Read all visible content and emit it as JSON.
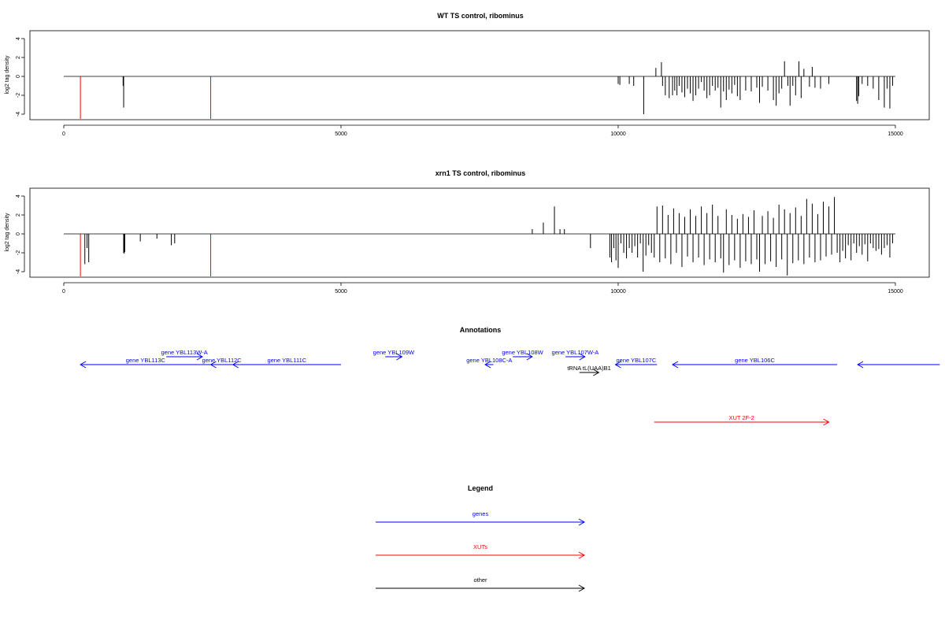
{
  "chart_data": [
    {
      "type": "bar",
      "title": "WT TS control, ribominus",
      "ylabel": "log2 tag density",
      "xlabel": "",
      "xlim": [
        0,
        15000
      ],
      "ylim": [
        -4.5,
        4.5
      ],
      "x_ticks": [
        0,
        5000,
        10000,
        15000
      ],
      "y_ticks": [
        -4,
        -2,
        0,
        2,
        4
      ],
      "grid": false,
      "series": [
        {
          "color": "#ff0000",
          "x": [
            300,
            2650
          ],
          "values": [
            -4.5,
            -4.5
          ]
        },
        {
          "color": "#000000",
          "x": [
            1070,
            1080,
            10000,
            10030,
            10200,
            10280,
            10460,
            10680,
            10780,
            10800,
            10850,
            10920,
            10980,
            11020,
            11060,
            11100,
            11150,
            11200,
            11250,
            11300,
            11350,
            11400,
            11450,
            11500,
            11550,
            11600,
            11650,
            11700,
            11750,
            11800,
            11850,
            11900,
            11950,
            12000,
            12050,
            12100,
            12150,
            12200,
            12300,
            12400,
            12500,
            12550,
            12600,
            12700,
            12800,
            12850,
            12900,
            12950,
            13000,
            13060,
            13100,
            13150,
            13200,
            13260,
            13300,
            13350,
            13450,
            13500,
            13550,
            13650,
            13800,
            14300,
            14320,
            14340,
            14400,
            14500,
            14600,
            14700,
            14800,
            14850,
            14900,
            14950
          ],
          "values": [
            -1.0,
            -3.3,
            -0.8,
            -0.9,
            -0.8,
            -1.0,
            -4.0,
            0.9,
            1.5,
            -1.0,
            -2.0,
            -2.3,
            -2.0,
            -1.5,
            -2.0,
            -1.0,
            -1.7,
            -2.2,
            -1.3,
            -1.8,
            -2.6,
            -2.0,
            -1.3,
            -0.6,
            -1.5,
            -2.3,
            -2.0,
            -1.0,
            -1.5,
            -1.2,
            -3.3,
            -1.6,
            -2.5,
            -1.4,
            -1.8,
            -0.9,
            -2.1,
            -2.5,
            -1.5,
            -1.6,
            -1.2,
            -2.8,
            -1.1,
            -1.5,
            -2.5,
            -3.1,
            -1.8,
            -1.3,
            1.6,
            -1.0,
            -3.1,
            -1.0,
            -2.0,
            1.6,
            -2.3,
            0.8,
            -1.1,
            1.0,
            -1.2,
            -1.3,
            -0.8,
            -2.6,
            -2.9,
            -2.1,
            -0.8,
            -1.0,
            -1.3,
            -2.5,
            -3.3,
            -1.3,
            -3.4,
            -1.0
          ]
        }
      ]
    },
    {
      "type": "bar",
      "title": "xrn1 TS control, ribominus",
      "ylabel": "log2 tag density",
      "xlabel": "",
      "xlim": [
        0,
        15000
      ],
      "ylim": [
        -4.5,
        4.5
      ],
      "x_ticks": [
        0,
        5000,
        10000,
        15000
      ],
      "y_ticks": [
        -4,
        -2,
        0,
        2,
        4
      ],
      "grid": false,
      "series": [
        {
          "color": "#ff0000",
          "x": [
            300,
            2650
          ],
          "values": [
            -4.5,
            -4.5
          ]
        },
        {
          "color": "#000000",
          "x": [
            380,
            420,
            450,
            1080,
            1090,
            1100,
            1380,
            1680,
            1940,
            2000,
            8450,
            8650,
            8850,
            8950,
            9030,
            9500,
            9850,
            9880,
            9920,
            9960,
            10000,
            10050,
            10100,
            10150,
            10200,
            10250,
            10300,
            10350,
            10400,
            10450,
            10500,
            10550,
            10600,
            10650,
            10700,
            10750,
            10800,
            10850,
            10900,
            10950,
            11000,
            11050,
            11100,
            11150,
            11200,
            11250,
            11300,
            11350,
            11400,
            11450,
            11500,
            11550,
            11600,
            11650,
            11700,
            11750,
            11800,
            11850,
            11900,
            11950,
            12000,
            12050,
            12100,
            12150,
            12200,
            12250,
            12300,
            12350,
            12400,
            12450,
            12500,
            12550,
            12600,
            12650,
            12700,
            12750,
            12800,
            12850,
            12900,
            12950,
            13000,
            13050,
            13100,
            13150,
            13200,
            13250,
            13300,
            13350,
            13400,
            13450,
            13500,
            13550,
            13600,
            13650,
            13700,
            13750,
            13800,
            13850,
            13900,
            13950,
            14000,
            14050,
            14100,
            14150,
            14200,
            14250,
            14300,
            14350,
            14400,
            14450,
            14500,
            14550,
            14600,
            14650,
            14700,
            14750,
            14800,
            14850,
            14900,
            14950
          ],
          "values": [
            -3.2,
            -1.5,
            -3.0,
            -2.0,
            -2.1,
            -1.9,
            -0.8,
            -0.5,
            -1.2,
            -1.0,
            0.5,
            1.2,
            2.9,
            0.5,
            0.5,
            -1.5,
            -2.5,
            -3.0,
            -1.5,
            -2.8,
            -3.6,
            -1.0,
            -2.0,
            -2.6,
            -1.5,
            -2.0,
            -1.3,
            -2.5,
            -1.0,
            -4.0,
            -2.3,
            -1.2,
            -2.0,
            -2.5,
            2.9,
            -3.0,
            3.0,
            -2.6,
            2.0,
            -3.2,
            2.7,
            -2.0,
            2.2,
            -3.5,
            1.8,
            -2.4,
            2.6,
            -3.0,
            1.9,
            -2.5,
            2.9,
            -3.3,
            2.2,
            -2.7,
            3.1,
            -3.0,
            1.9,
            -2.6,
            -4.1,
            2.6,
            -3.3,
            2.0,
            -2.8,
            1.6,
            -3.6,
            2.1,
            -2.9,
            1.8,
            -3.2,
            2.5,
            -2.7,
            -4.0,
            1.9,
            -3.2,
            2.4,
            -2.9,
            1.7,
            -3.5,
            3.1,
            -2.7,
            2.6,
            -4.4,
            2.2,
            -3.1,
            2.8,
            -2.8,
            1.9,
            -3.2,
            3.7,
            -2.5,
            3.2,
            -3.0,
            2.1,
            -2.8,
            3.4,
            -2.4,
            2.9,
            -2.2,
            3.9,
            -2.0,
            -3.0,
            -1.8,
            -2.6,
            -1.2,
            -2.8,
            -1.0,
            -2.0,
            -1.3,
            -2.2,
            -1.1,
            -2.9,
            -1.0,
            -1.5,
            -1.8,
            -1.6,
            -2.2,
            -1.5,
            -1.2,
            -2.5,
            -1.0
          ]
        }
      ]
    }
  ],
  "annotations": {
    "title": "Annotations",
    "items": [
      {
        "label": "gene YBL113W-A",
        "color": "#0000ff",
        "x0": 1850,
        "x1": 2500,
        "dir": "right",
        "row": 0
      },
      {
        "label": "gene YBL113C",
        "color": "#0000ff",
        "x0": 300,
        "x1": 2650,
        "dir": "left",
        "row": 1
      },
      {
        "label": "gene YBL112C",
        "color": "#0000ff",
        "x0": 2650,
        "x1": 3050,
        "dir": "left",
        "row": 1
      },
      {
        "label": "gene YBL111C",
        "color": "#0000ff",
        "x0": 3050,
        "x1": 5000,
        "dir": "left",
        "row": 1
      },
      {
        "label": "gene YBL109W",
        "color": "#0000ff",
        "x0": 5800,
        "x1": 6100,
        "dir": "right",
        "row": 0
      },
      {
        "label": "gene YBL108C-A",
        "color": "#0000ff",
        "x0": 7600,
        "x1": 7750,
        "dir": "left",
        "row": 1
      },
      {
        "label": "gene YBL108W",
        "color": "#0000ff",
        "x0": 8100,
        "x1": 8450,
        "dir": "right",
        "row": 0
      },
      {
        "label": "gene YBL107W-A",
        "color": "#0000ff",
        "x0": 9050,
        "x1": 9400,
        "dir": "right",
        "row": 0
      },
      {
        "label": "gene YBL107C",
        "color": "#0000ff",
        "x0": 9950,
        "x1": 10700,
        "dir": "left",
        "row": 1
      },
      {
        "label": "tRNA tL(UAA)B1",
        "color": "#000000",
        "x0": 9300,
        "x1": 9650,
        "dir": "right",
        "row": 2
      },
      {
        "label": "gene YBL106C",
        "color": "#0000ff",
        "x0": 10980,
        "x1": 13950,
        "dir": "left",
        "row": 1
      },
      {
        "label": "",
        "color": "#0000ff",
        "x0": 14320,
        "x1": 15800,
        "dir": "left",
        "row": 1
      },
      {
        "label": "XUT 2F-2",
        "color": "#ff0000",
        "x0": 10650,
        "x1": 13800,
        "dir": "right",
        "row": 3
      }
    ]
  },
  "legend": {
    "title": "Legend",
    "items": [
      {
        "label": "genes",
        "color": "#0000ff"
      },
      {
        "label": "XUTs",
        "color": "#ff0000"
      },
      {
        "label": "other",
        "color": "#000000"
      }
    ]
  }
}
